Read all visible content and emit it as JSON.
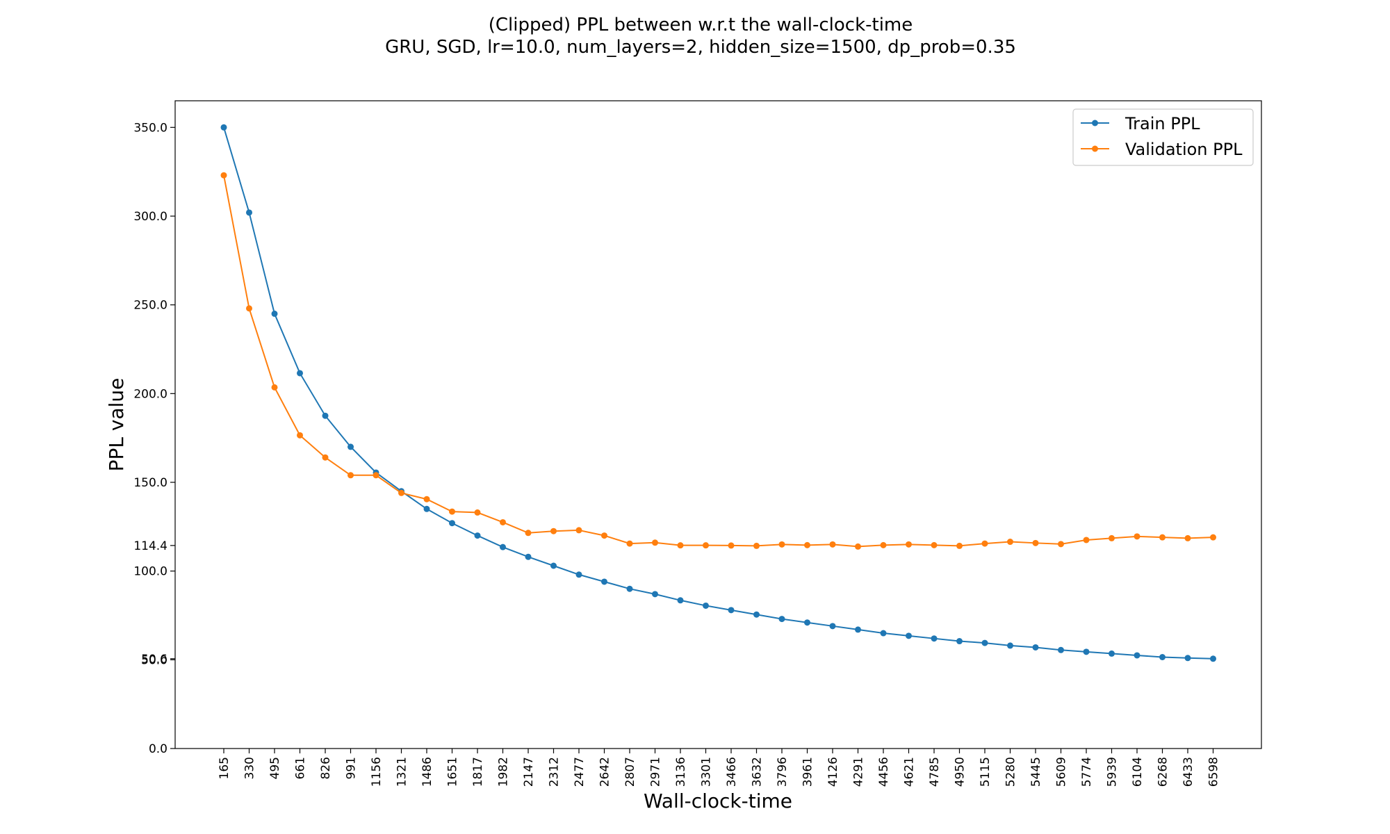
{
  "chart_data": {
    "type": "line",
    "title": "(Clipped) PPL between w.r.t the wall-clock-time",
    "subtitle": "GRU, SGD, lr=10.0,  num_layers=2,  hidden_size=1500,  dp_prob=0.35",
    "xlabel": "Wall-clock-time",
    "ylabel": "PPL value",
    "x_categories": [
      "165",
      "330",
      "495",
      "661",
      "826",
      "991",
      "1156",
      "1321",
      "1486",
      "1651",
      "1817",
      "1982",
      "2147",
      "2312",
      "2477",
      "2642",
      "2807",
      "2971",
      "3136",
      "3301",
      "3466",
      "3632",
      "3796",
      "3961",
      "4126",
      "4291",
      "4456",
      "4621",
      "4785",
      "4950",
      "5115",
      "5280",
      "5445",
      "5609",
      "5774",
      "5939",
      "6104",
      "6268",
      "6433",
      "6598"
    ],
    "y_ticks": [
      0.0,
      50.0,
      50.6,
      100.0,
      114.4,
      150.0,
      200.0,
      250.0,
      300.0,
      350.0
    ],
    "y_tick_labels": [
      "0.0",
      "50.0",
      "50.6",
      "100.0",
      "114.4",
      "150.0",
      "200.0",
      "250.0",
      "300.0",
      "350.0"
    ],
    "ylim": [
      0,
      365
    ],
    "grid": false,
    "legend_position": "top-right",
    "series": [
      {
        "name": "Train PPL",
        "color": "#1f77b4",
        "values": [
          350.0,
          302.0,
          245.0,
          211.5,
          187.5,
          170.0,
          155.5,
          145.0,
          135.0,
          127.0,
          120.0,
          113.5,
          108.0,
          103.0,
          98.0,
          94.0,
          90.0,
          87.0,
          83.5,
          80.5,
          78.0,
          75.5,
          73.0,
          71.0,
          69.0,
          67.0,
          65.0,
          63.5,
          62.0,
          60.5,
          59.5,
          58.0,
          57.0,
          55.5,
          54.5,
          53.5,
          52.5,
          51.5,
          51.0,
          50.6
        ]
      },
      {
        "name": "Validation PPL",
        "color": "#ff7f0e",
        "values": [
          323.0,
          248.0,
          203.5,
          176.5,
          164.0,
          154.0,
          154.0,
          144.0,
          140.5,
          133.5,
          133.0,
          127.5,
          121.5,
          122.5,
          123.0,
          120.0,
          115.5,
          116.0,
          114.5,
          114.5,
          114.4,
          114.2,
          115.0,
          114.6,
          115.0,
          113.8,
          114.6,
          115.0,
          114.6,
          114.2,
          115.5,
          116.5,
          115.8,
          115.2,
          117.5,
          118.5,
          119.5,
          119.0,
          118.5,
          119.0
        ]
      }
    ]
  }
}
